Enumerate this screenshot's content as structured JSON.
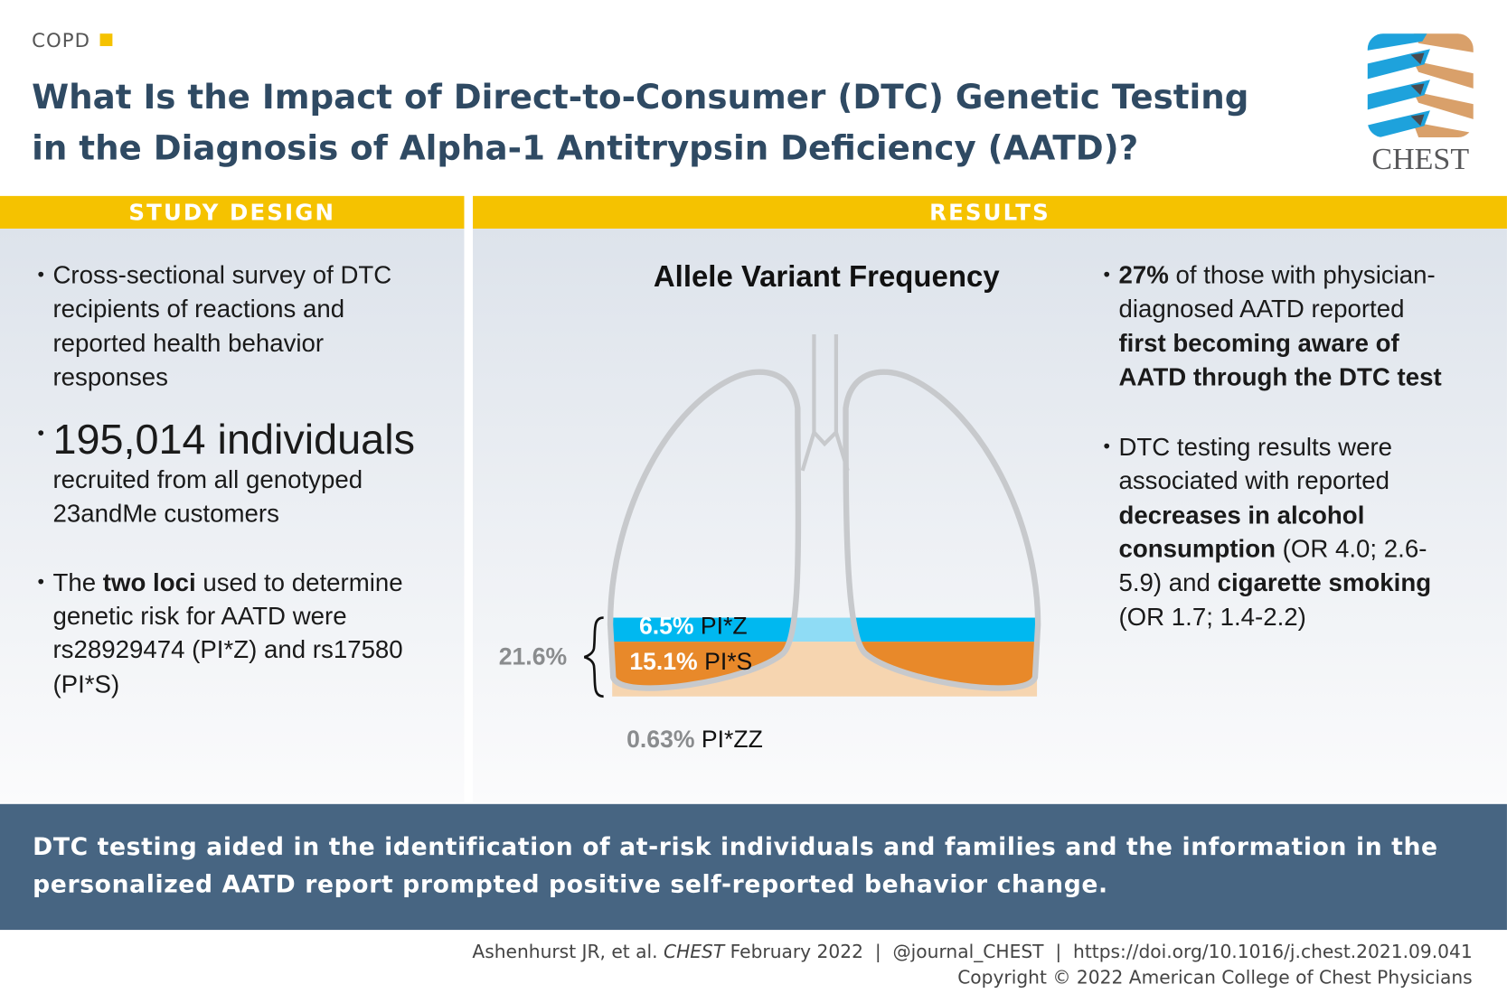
{
  "header": {
    "category": "COPD",
    "title_line1": "What Is the Impact of Direct-to-Consumer (DTC) Genetic Testing",
    "title_line2": "in the Diagnosis of Alpha-1 Antitrypsin Deficiency (AATD)?",
    "logo_text": "CHEST"
  },
  "colors": {
    "accent": "#f5c200",
    "navy": "#476582",
    "blue": "#00b8f0",
    "orange": "#e8892a",
    "title": "#2f4a63"
  },
  "study_design": {
    "heading": "STUDY DESIGN",
    "bullet1": [
      "Cross-sectional survey of DTC",
      "recipients of reactions and",
      "reported health behavior",
      "responses"
    ],
    "bullet2_big": "195,014 individuals",
    "bullet2_rest": [
      "recruited from all genotyped",
      "23andMe customers"
    ],
    "bullet3": {
      "pre": "The ",
      "bold": "two loci",
      "post": " used to determine",
      "lines": [
        "genetic risk for AATD were",
        "rs28929474 (PI*Z) and rs17580",
        "(PI*S)"
      ]
    }
  },
  "results": {
    "heading": "RESULTS",
    "chart_title": "Allele Variant Frequency",
    "bullet1": {
      "bold1": "27%",
      "text1": " of those with physician-",
      "line2": "diagnosed AATD reported",
      "bold2": "first becoming aware of",
      "bold3": "AATD through the DTC test"
    },
    "bullet2": {
      "line1": "DTC testing results were",
      "line2": "associated with reported",
      "bold1": "decreases in alcohol",
      "bold2": "consumption",
      "text2": " (OR 4.0; 2.6-",
      "text3": "5.9) and ",
      "bold3": "cigarette smoking",
      "line_last": "(OR 1.7; 1.4-2.2)"
    }
  },
  "chart_data": {
    "type": "stacked-band",
    "title": "Allele Variant Frequency",
    "series": [
      {
        "name": "PI*Z",
        "value": 6.5,
        "label": "6.5%"
      },
      {
        "name": "PI*S",
        "value": 15.1,
        "label": "15.1%"
      }
    ],
    "total": {
      "value": 21.6,
      "label": "21.6%"
    },
    "extra": {
      "name": "PI*ZZ",
      "value": 0.63,
      "label": "0.63%"
    }
  },
  "conclusion": {
    "line1": "DTC testing aided in the identification of at-risk individuals and families and the information in the",
    "line2": "personalized AATD report prompted positive self-reported behavior change."
  },
  "footer": {
    "citation_author": "Ashenhurst JR, et al. ",
    "citation_journal": "CHEST",
    "citation_date": " February 2022",
    "separator": "|",
    "handle": "@journal_CHEST",
    "doi": "https://doi.org/10.1016/j.chest.2021.09.041",
    "copyright": "Copyright © 2022 American College of Chest Physicians"
  }
}
